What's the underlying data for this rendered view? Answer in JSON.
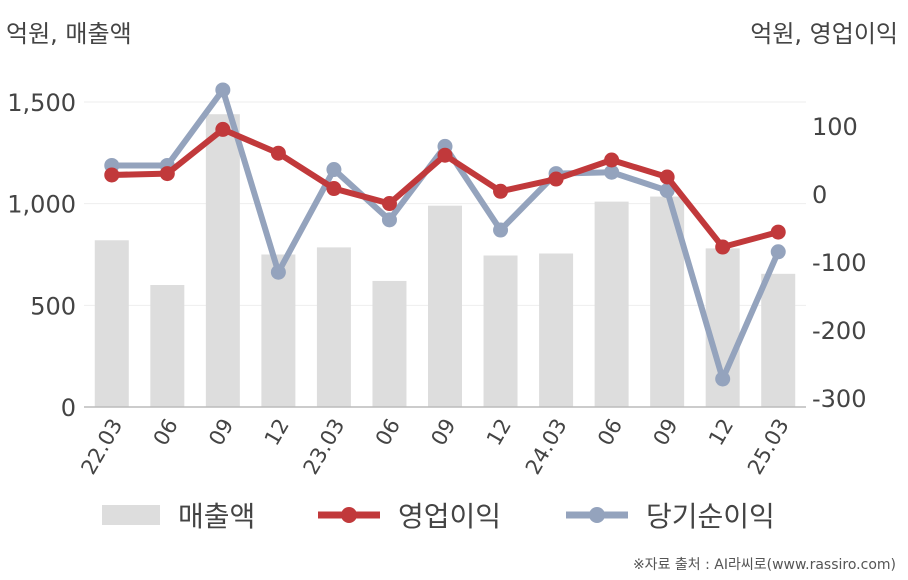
{
  "units": {
    "left": "억원, 매출액",
    "right": "억원, 영업이익"
  },
  "source": "※자료 출처 : AI라씨로(www.rassiro.com)",
  "chart_data": {
    "type": "bar+line",
    "categories": [
      "22.03",
      "06",
      "09",
      "12",
      "23.03",
      "06",
      "09",
      "12",
      "24.03",
      "06",
      "09",
      "12",
      "25.03"
    ],
    "left_axis": {
      "ylim": [
        0,
        1500
      ],
      "ticks": [
        0,
        500,
        1000,
        1500
      ],
      "tick_labels": [
        "0",
        "500",
        "1,000",
        "1,500"
      ]
    },
    "right_axis": {
      "ylim": [
        -300,
        100
      ],
      "ticks": [
        -300,
        -200,
        -100,
        0,
        100
      ],
      "tick_labels": [
        "-300",
        "-200",
        "-100",
        "0",
        "100"
      ]
    },
    "series": [
      {
        "name": "매출액",
        "type": "bar",
        "axis": "left",
        "color": "#dddddd",
        "values": [
          820,
          600,
          1440,
          750,
          785,
          620,
          990,
          745,
          755,
          1010,
          1035,
          780,
          655
        ]
      },
      {
        "name": "영업이익",
        "type": "line",
        "axis": "right",
        "color": "#c1393b",
        "values": [
          28,
          30,
          95,
          60,
          8,
          -14,
          57,
          4,
          22,
          50,
          25,
          -78,
          -56
        ]
      },
      {
        "name": "당기순이익",
        "type": "line",
        "axis": "right",
        "color": "#94a3bd",
        "values": [
          42,
          42,
          153,
          -115,
          36,
          -38,
          70,
          -53,
          30,
          32,
          5,
          -272,
          -85
        ]
      }
    ],
    "grid": true,
    "legend_position": "bottom"
  }
}
